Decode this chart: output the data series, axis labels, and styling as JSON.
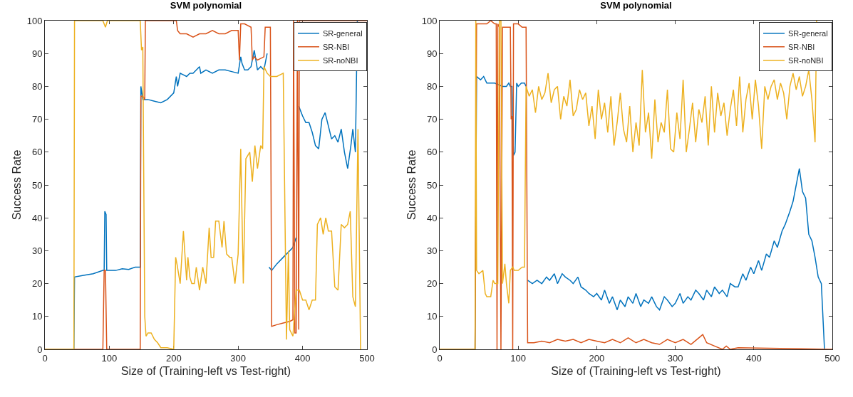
{
  "chart_data": [
    {
      "type": "line",
      "title": "SVM polynomial",
      "xlabel": "Size of (Training-left vs Test-right)",
      "ylabel": "Success Rate",
      "xlim": [
        0,
        500
      ],
      "ylim": [
        0,
        100
      ],
      "xticks": [
        0,
        100,
        200,
        300,
        400,
        500
      ],
      "yticks": [
        0,
        10,
        20,
        30,
        40,
        50,
        60,
        70,
        80,
        90,
        100
      ],
      "legend": "top right",
      "grid": false,
      "series": [
        {
          "name": "SR-general",
          "color": "#0072bd",
          "x": [
            0,
            45,
            46,
            60,
            75,
            90,
            92,
            93,
            95,
            96,
            110,
            120,
            130,
            140,
            148,
            149,
            152,
            160,
            170,
            180,
            190,
            200,
            204,
            206,
            210,
            220,
            225,
            230,
            240,
            242,
            250,
            260,
            270,
            280,
            290,
            300,
            304,
            306,
            310,
            315,
            320,
            325,
            330,
            335,
            340,
            345,
            null,
            348,
            352,
            360,
            370,
            380,
            385,
            390,
            null,
            394,
            400,
            405,
            410,
            415,
            420,
            425,
            430,
            435,
            440,
            445,
            450,
            455,
            460,
            465,
            470,
            475,
            478,
            482,
            485
          ],
          "values": [
            0,
            0,
            22,
            22.5,
            23,
            24,
            24,
            42,
            41,
            24,
            24,
            24.5,
            24.3,
            25,
            25,
            80,
            76,
            76,
            75.5,
            75,
            76,
            78,
            83,
            80,
            84,
            83,
            84,
            84,
            86,
            84,
            85,
            84,
            85,
            85,
            84.5,
            84,
            89,
            87,
            85,
            85,
            86,
            91,
            85,
            86,
            85,
            90,
            null,
            25,
            24,
            26,
            28,
            30,
            31,
            34,
            null,
            74,
            71,
            69,
            69,
            66,
            62,
            61,
            70,
            72,
            68,
            64,
            65,
            63,
            67,
            60,
            55,
            62,
            67,
            60,
            100
          ]
        },
        {
          "name": "SR-NBI",
          "color": "#d95319",
          "x": [
            0,
            90,
            92,
            94,
            96,
            148,
            149,
            152,
            155,
            156,
            200,
            204,
            206,
            210,
            220,
            230,
            240,
            250,
            260,
            270,
            280,
            290,
            300,
            302,
            304,
            310,
            320,
            322,
            325,
            330,
            340,
            342,
            345,
            350,
            352,
            360,
            370,
            380,
            385,
            386,
            388,
            390,
            392,
            394,
            395,
            400,
            500
          ],
          "values": [
            0,
            0,
            24,
            24,
            0,
            0,
            77,
            77,
            76,
            100,
            100,
            100,
            97,
            96,
            96,
            95,
            96,
            96,
            97,
            96,
            96,
            97,
            97,
            88,
            99,
            99,
            98,
            88,
            89,
            88,
            89,
            98,
            98,
            98,
            7,
            7.5,
            8,
            8.5,
            9,
            100,
            5,
            5,
            100,
            6,
            100,
            100,
            100
          ]
        },
        {
          "name": "SR-noNBI",
          "color": "#edb120",
          "x": [
            0,
            45,
            46,
            90,
            94,
            97,
            100,
            148,
            150,
            152,
            155,
            157,
            160,
            165,
            170,
            175,
            180,
            190,
            200,
            203,
            205,
            210,
            215,
            220,
            222,
            225,
            228,
            232,
            235,
            240,
            245,
            250,
            255,
            258,
            262,
            265,
            270,
            275,
            278,
            282,
            287,
            290,
            295,
            300,
            304,
            308,
            312,
            318,
            322,
            326,
            330,
            335,
            338,
            340,
            345,
            350,
            360,
            370,
            375,
            378,
            380,
            385,
            390,
            395,
            400,
            405,
            410,
            415,
            420,
            423,
            428,
            432,
            436,
            440,
            445,
            450,
            455,
            460,
            465,
            470,
            474,
            478,
            482,
            486,
            490
          ],
          "values": [
            0,
            0,
            100,
            100,
            98,
            100,
            100,
            100,
            91,
            92,
            10,
            4,
            5,
            5,
            3,
            2,
            0.5,
            0.5,
            0,
            28,
            26,
            20,
            36,
            21,
            28,
            22,
            20,
            20,
            25,
            18,
            25,
            20,
            37,
            28,
            28,
            39,
            39,
            31,
            39,
            29,
            28,
            28,
            20,
            29,
            61,
            20,
            58,
            60,
            51,
            62,
            55,
            62,
            61,
            86,
            84,
            83,
            83,
            84,
            3,
            30,
            6,
            4,
            18,
            18,
            15,
            15,
            12,
            15,
            15,
            38,
            40,
            35,
            40,
            36,
            36,
            19,
            18,
            38,
            37,
            38,
            42,
            16,
            13,
            67,
            0
          ]
        }
      ]
    },
    {
      "type": "line",
      "title": "SVM polynomial",
      "xlabel": "Size of (Training-left vs Test-right)",
      "ylabel": "Success Rate",
      "xlim": [
        0,
        500
      ],
      "ylim": [
        0,
        100
      ],
      "xticks": [
        0,
        100,
        200,
        300,
        400,
        500
      ],
      "yticks": [
        0,
        10,
        20,
        30,
        40,
        50,
        60,
        70,
        80,
        90,
        100
      ],
      "legend": "top right",
      "grid": false,
      "series": [
        {
          "name": "SR-general",
          "color": "#0072bd",
          "x": [
            0,
            45,
            47,
            52,
            56,
            60,
            65,
            70,
            80,
            85,
            88,
            90,
            92,
            94,
            96,
            98,
            100,
            104,
            108,
            110,
            null,
            112,
            118,
            124,
            130,
            136,
            140,
            146,
            150,
            156,
            160,
            166,
            170,
            176,
            180,
            186,
            190,
            196,
            200,
            206,
            210,
            216,
            220,
            226,
            230,
            236,
            240,
            246,
            250,
            256,
            260,
            266,
            270,
            276,
            280,
            286,
            290,
            296,
            300,
            306,
            310,
            316,
            320,
            326,
            330,
            336,
            340,
            346,
            350,
            356,
            360,
            366,
            370,
            376,
            380,
            386,
            390,
            396,
            400,
            406,
            410,
            416,
            420,
            426,
            430,
            436,
            440,
            446,
            450,
            454,
            458,
            462,
            466,
            470,
            474,
            478,
            482,
            486,
            490
          ],
          "values": [
            0,
            0,
            83,
            82,
            83,
            81,
            81,
            81,
            80,
            80,
            81,
            80,
            80,
            59,
            60,
            81,
            80,
            81,
            81,
            80,
            null,
            21,
            20,
            21,
            20,
            22,
            21,
            23,
            20,
            23,
            22,
            21,
            20,
            22,
            19,
            18,
            17,
            16,
            17,
            15,
            18,
            14,
            16,
            12,
            15,
            13,
            16,
            14,
            17,
            13,
            15,
            14,
            16,
            13,
            12,
            16,
            15,
            13,
            14,
            17,
            14,
            16,
            15,
            18,
            17,
            15,
            18,
            16,
            19,
            17,
            18,
            16,
            20,
            19,
            19,
            23,
            21,
            25,
            23,
            27,
            24,
            29,
            28,
            33,
            31,
            36,
            38,
            42,
            45,
            50,
            55,
            48,
            46,
            35,
            33,
            28,
            22,
            20,
            0
          ]
        },
        {
          "name": "SR-NBI",
          "color": "#d95319",
          "x": [
            0,
            45,
            47,
            55,
            60,
            65,
            70,
            72,
            73,
            74,
            76,
            78,
            80,
            85,
            88,
            90,
            91,
            92,
            93,
            94,
            96,
            100,
            105,
            108,
            110,
            112,
            120,
            130,
            140,
            150,
            160,
            170,
            180,
            190,
            200,
            210,
            220,
            230,
            240,
            250,
            260,
            270,
            280,
            290,
            300,
            310,
            320,
            330,
            335,
            340,
            350,
            360,
            365,
            370,
            380,
            500
          ],
          "values": [
            0,
            0,
            99,
            99,
            99,
            100,
            99,
            99,
            0,
            99,
            98,
            0,
            98,
            98,
            98,
            98,
            70,
            71,
            0,
            99,
            99,
            99,
            98,
            98,
            98,
            2,
            2,
            2.5,
            2,
            3,
            2.5,
            3,
            2,
            3,
            2.5,
            2,
            3,
            2,
            3.5,
            2,
            3,
            2,
            1.5,
            3,
            2,
            3,
            1.5,
            3.5,
            4.5,
            2,
            1,
            0,
            1,
            0,
            0.5,
            0
          ]
        },
        {
          "name": "SR-noNBI",
          "color": "#edb120",
          "x": [
            0,
            45,
            46,
            47,
            50,
            55,
            58,
            60,
            65,
            68,
            70,
            72,
            74,
            76,
            78,
            80,
            83,
            85,
            88,
            90,
            93,
            95,
            100,
            105,
            108,
            110,
            114,
            118,
            122,
            126,
            130,
            134,
            138,
            142,
            146,
            150,
            154,
            158,
            162,
            166,
            170,
            174,
            178,
            182,
            186,
            190,
            194,
            198,
            202,
            206,
            210,
            214,
            218,
            222,
            226,
            230,
            234,
            238,
            242,
            246,
            250,
            254,
            258,
            262,
            266,
            270,
            274,
            278,
            282,
            286,
            290,
            294,
            298,
            302,
            306,
            310,
            314,
            318,
            322,
            326,
            330,
            334,
            338,
            342,
            346,
            350,
            354,
            358,
            362,
            366,
            370,
            374,
            378,
            382,
            386,
            390,
            394,
            398,
            402,
            406,
            410,
            414,
            418,
            422,
            426,
            430,
            434,
            438,
            442,
            446,
            450,
            454,
            458,
            462,
            466,
            470,
            474,
            478,
            480
          ],
          "values": [
            0,
            0,
            100,
            24,
            23,
            24,
            17,
            16,
            16,
            21,
            20,
            20,
            20,
            100,
            100,
            20,
            26,
            20,
            14,
            24,
            25,
            24,
            24,
            25,
            25,
            80,
            77,
            79,
            72,
            80,
            76,
            78,
            84,
            75,
            79,
            80,
            70,
            77,
            74,
            82,
            71,
            73,
            79,
            76,
            78,
            68,
            74,
            64,
            79,
            70,
            75,
            66,
            77,
            62,
            69,
            78,
            67,
            63,
            74,
            60,
            69,
            62,
            85,
            66,
            72,
            58,
            76,
            63,
            69,
            66,
            79,
            61,
            60,
            72,
            64,
            82,
            60,
            67,
            75,
            63,
            73,
            69,
            77,
            62,
            80,
            66,
            78,
            71,
            75,
            65,
            73,
            79,
            68,
            83,
            66,
            76,
            81,
            70,
            82,
            74,
            61,
            80,
            76,
            80,
            82,
            76,
            81,
            78,
            70,
            80,
            84,
            79,
            83,
            77,
            80,
            85,
            76,
            63,
            100
          ]
        }
      ]
    }
  ]
}
